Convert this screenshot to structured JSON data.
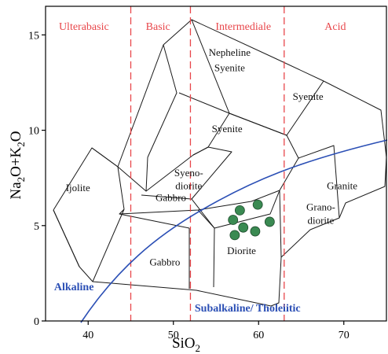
{
  "chart_data": {
    "type": "scatter",
    "title": "",
    "xlabel": "SiO",
    "xlabel_sub": "2",
    "ylabel_parts": [
      "Na",
      "2",
      "O+K",
      "2",
      "O"
    ],
    "xlim": [
      35,
      75
    ],
    "ylim": [
      0,
      16.5
    ],
    "x_ticks": [
      40,
      50,
      60,
      70
    ],
    "x_tick_labels": [
      "40",
      "50",
      "60",
      "70"
    ],
    "y_ticks": [
      0,
      5,
      10,
      15
    ],
    "y_tick_labels": [
      "0",
      "5",
      "10",
      "15"
    ],
    "grid": false,
    "categories": [
      {
        "label": "Ulterabasic",
        "x": 39.5
      },
      {
        "label": "Basic",
        "x": 48.2
      },
      {
        "label": "Intermediale",
        "x": 58.2
      },
      {
        "label": "Acid",
        "x": 69.0
      }
    ],
    "category_dividers": [
      45,
      52,
      63
    ],
    "fields": [
      {
        "label": "Nepheline",
        "x": 56.6,
        "y": 13.9
      },
      {
        "label": "Syenite",
        "x": 56.6,
        "y": 13.1
      },
      {
        "label": "Syenite",
        "x": 65.8,
        "y": 11.6
      },
      {
        "label": "Syenite",
        "x": 56.3,
        "y": 9.9
      },
      {
        "label": "Syeno-",
        "x": 51.8,
        "y": 7.6
      },
      {
        "label": "diorite",
        "x": 51.8,
        "y": 6.9
      },
      {
        "label": "Gabbro",
        "x": 49.7,
        "y": 6.3
      },
      {
        "label": "Ijolite",
        "x": 38.8,
        "y": 6.8
      },
      {
        "label": "Granite",
        "x": 69.8,
        "y": 6.9
      },
      {
        "label": "Grano-",
        "x": 67.3,
        "y": 5.8
      },
      {
        "label": "diorite",
        "x": 67.3,
        "y": 5.1
      },
      {
        "label": "Gabbro",
        "x": 49.0,
        "y": 2.9
      },
      {
        "label": "Diorite",
        "x": 58.0,
        "y": 3.5
      }
    ],
    "series": [
      {
        "name": "",
        "points": [
          {
            "x": 57.0,
            "y": 5.3
          },
          {
            "x": 57.2,
            "y": 4.5
          },
          {
            "x": 57.8,
            "y": 5.8
          },
          {
            "x": 58.2,
            "y": 4.9
          },
          {
            "x": 59.6,
            "y": 4.7
          },
          {
            "x": 59.9,
            "y": 6.1
          },
          {
            "x": 61.3,
            "y": 5.2
          }
        ]
      }
    ],
    "boundary_labels": [
      {
        "label": "Alkaline",
        "x": 36.0,
        "y": 1.6
      },
      {
        "label": "Subalkaline/ Tholeiitic",
        "x": 52.5,
        "y": 0.5
      }
    ]
  }
}
